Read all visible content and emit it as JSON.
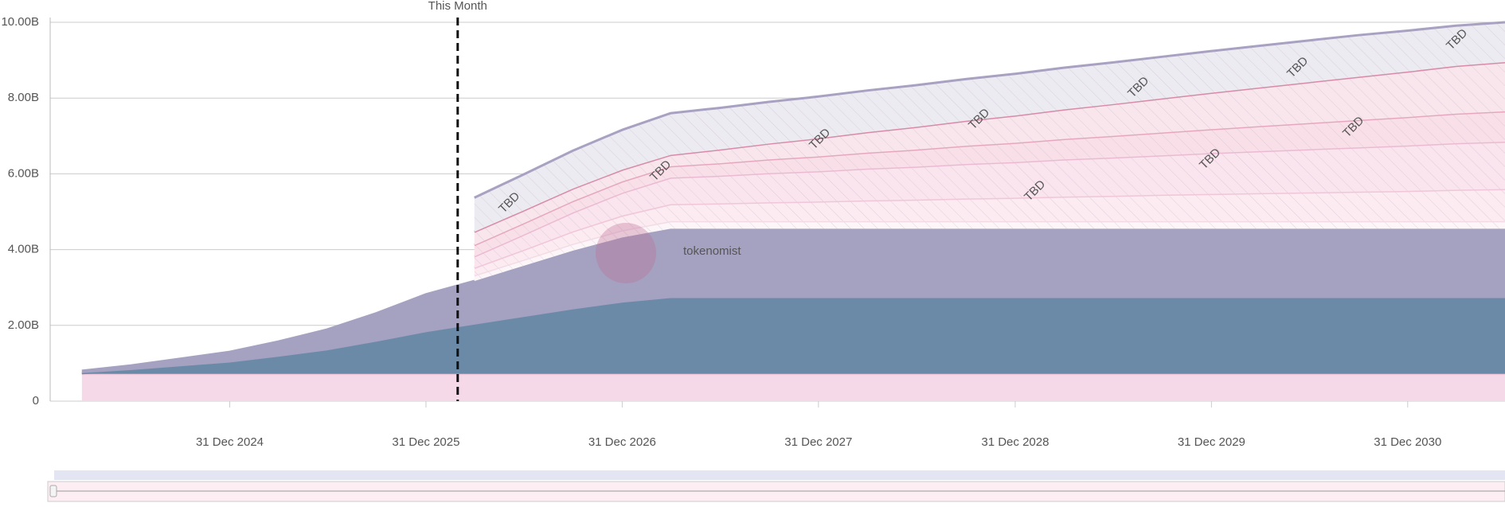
{
  "chart_data": {
    "type": "stacked-area",
    "x": [
      "2024-03-31",
      "2024-06-30",
      "2024-09-30",
      "2024-12-31",
      "2025-03-31",
      "2025-06-30",
      "2025-09-30",
      "2025-12-31",
      "2026-03-31",
      "2026-06-30",
      "2026-09-30",
      "2026-12-31",
      "2027-03-31",
      "2027-06-30",
      "2027-09-30",
      "2027-12-31",
      "2028-03-31",
      "2028-06-30",
      "2028-09-30",
      "2028-12-31",
      "2029-03-31",
      "2029-06-30",
      "2029-09-30",
      "2029-12-31",
      "2030-03-31",
      "2030-06-30",
      "2030-09-30",
      "2030-12-31",
      "2031-03-31",
      "2031-06-30"
    ],
    "xlim": [
      "2024-02-01",
      "2031-06-30"
    ],
    "xticks": [
      {
        "value": "2024-12-31",
        "label": "31 Dec 2024"
      },
      {
        "value": "2025-12-31",
        "label": "31 Dec 2025"
      },
      {
        "value": "2026-12-31",
        "label": "31 Dec 2026"
      },
      {
        "value": "2027-12-31",
        "label": "31 Dec 2027"
      },
      {
        "value": "2028-12-31",
        "label": "31 Dec 2028"
      },
      {
        "value": "2029-12-31",
        "label": "31 Dec 2029"
      },
      {
        "value": "2030-12-31",
        "label": "31 Dec 2030"
      }
    ],
    "ylim": [
      0,
      10
    ],
    "yticks": [
      0,
      {
        "value": 2,
        "label": "2.00B"
      },
      {
        "value": 4,
        "label": "4.00B"
      },
      {
        "value": 6,
        "label": "6.00B"
      },
      {
        "value": 8,
        "label": "8.00B"
      },
      {
        "value": 10,
        "label": "10.00B"
      }
    ],
    "grid": true,
    "marker": {
      "label": "This Month",
      "x": "2026-02-28"
    },
    "hatch_label": "TBD",
    "watermark": "tokenomist",
    "series": [
      {
        "color": "#f6d9e8",
        "line": "#f0c8dc",
        "hatched": false,
        "values": [
          0.72,
          0.72,
          0.72,
          0.72,
          0.72,
          0.72,
          0.72,
          0.72,
          0.72,
          0.72,
          0.72,
          0.72,
          0.72,
          0.72,
          0.72,
          0.72,
          0.72,
          0.72,
          0.72,
          0.72,
          0.72,
          0.72,
          0.72,
          0.72,
          0.72,
          0.72,
          0.72,
          0.72,
          0.72,
          0.72
        ]
      },
      {
        "color": "#6b8aa8",
        "line": "#6b8aa8",
        "hatched": false,
        "values": [
          0.02,
          0.1,
          0.2,
          0.3,
          0.45,
          0.62,
          0.85,
          1.1,
          1.3,
          1.5,
          1.7,
          1.88,
          2.0,
          2.0,
          2.0,
          2.0,
          2.0,
          2.0,
          2.0,
          2.0,
          2.0,
          2.0,
          2.0,
          2.0,
          2.0,
          2.0,
          2.0,
          2.0,
          2.0,
          2.0
        ]
      },
      {
        "color": "#a5a1c0",
        "line": "#a5a1c0",
        "hatched": false,
        "values": [
          0.06,
          0.12,
          0.2,
          0.28,
          0.4,
          0.55,
          0.75,
          1.0,
          1.15,
          1.35,
          1.55,
          1.72,
          1.83,
          1.83,
          1.83,
          1.83,
          1.83,
          1.83,
          1.83,
          1.83,
          1.83,
          1.83,
          1.83,
          1.83,
          1.83,
          1.83,
          1.83,
          1.83,
          1.83,
          1.83
        ]
      },
      {
        "color": "#fdf6f9",
        "line": "#f3dbe6",
        "hatched": true,
        "values": [
          null,
          null,
          null,
          null,
          null,
          null,
          null,
          null,
          0.15,
          0.16,
          0.18,
          0.19,
          0.2,
          0.2,
          0.2,
          0.2,
          0.2,
          0.2,
          0.2,
          0.2,
          0.2,
          0.2,
          0.2,
          0.2,
          0.2,
          0.2,
          0.2,
          0.2,
          0.2,
          0.2
        ]
      },
      {
        "color": "#fcebf1",
        "line": "#f0c6d8",
        "hatched": true,
        "values": [
          null,
          null,
          null,
          null,
          null,
          null,
          null,
          null,
          0.2,
          0.26,
          0.33,
          0.39,
          0.45,
          0.47,
          0.5,
          0.52,
          0.55,
          0.57,
          0.6,
          0.62,
          0.65,
          0.67,
          0.7,
          0.72,
          0.74,
          0.76,
          0.78,
          0.8,
          0.83,
          0.85
        ]
      },
      {
        "color": "#fae4ed",
        "line": "#ebbad2",
        "hatched": true,
        "values": [
          null,
          null,
          null,
          null,
          null,
          null,
          null,
          null,
          0.3,
          0.4,
          0.5,
          0.6,
          0.7,
          0.73,
          0.77,
          0.8,
          0.84,
          0.87,
          0.91,
          0.94,
          0.98,
          1.01,
          1.04,
          1.08,
          1.11,
          1.14,
          1.17,
          1.2,
          1.23,
          1.25
        ]
      },
      {
        "color": "#f9e0e8",
        "line": "#e6a7be",
        "hatched": true,
        "values": [
          null,
          null,
          null,
          null,
          null,
          null,
          null,
          null,
          0.3,
          0.3,
          0.3,
          0.3,
          0.3,
          0.33,
          0.36,
          0.39,
          0.42,
          0.45,
          0.48,
          0.51,
          0.54,
          0.57,
          0.6,
          0.63,
          0.66,
          0.69,
          0.72,
          0.75,
          0.78,
          0.8
        ]
      },
      {
        "color": "#f8e6ec",
        "line": "#d88aa6",
        "hatched": true,
        "values": [
          null,
          null,
          null,
          null,
          null,
          null,
          null,
          null,
          0.35,
          0.34,
          0.33,
          0.31,
          0.3,
          0.36,
          0.42,
          0.48,
          0.54,
          0.6,
          0.66,
          0.72,
          0.78,
          0.84,
          0.9,
          0.96,
          1.02,
          1.08,
          1.14,
          1.2,
          1.26,
          1.3
        ]
      },
      {
        "color": "#ecebf1",
        "line": "#a9a1c1",
        "hatched": true,
        "values": [
          null,
          null,
          null,
          null,
          null,
          null,
          null,
          null,
          0.9,
          0.95,
          1.0,
          1.05,
          1.1,
          1.1,
          1.1,
          1.1,
          1.1,
          1.1,
          1.1,
          1.1,
          1.1,
          1.1,
          1.1,
          1.1,
          1.1,
          1.1,
          1.1,
          1.08,
          1.06,
          1.05
        ]
      }
    ]
  }
}
